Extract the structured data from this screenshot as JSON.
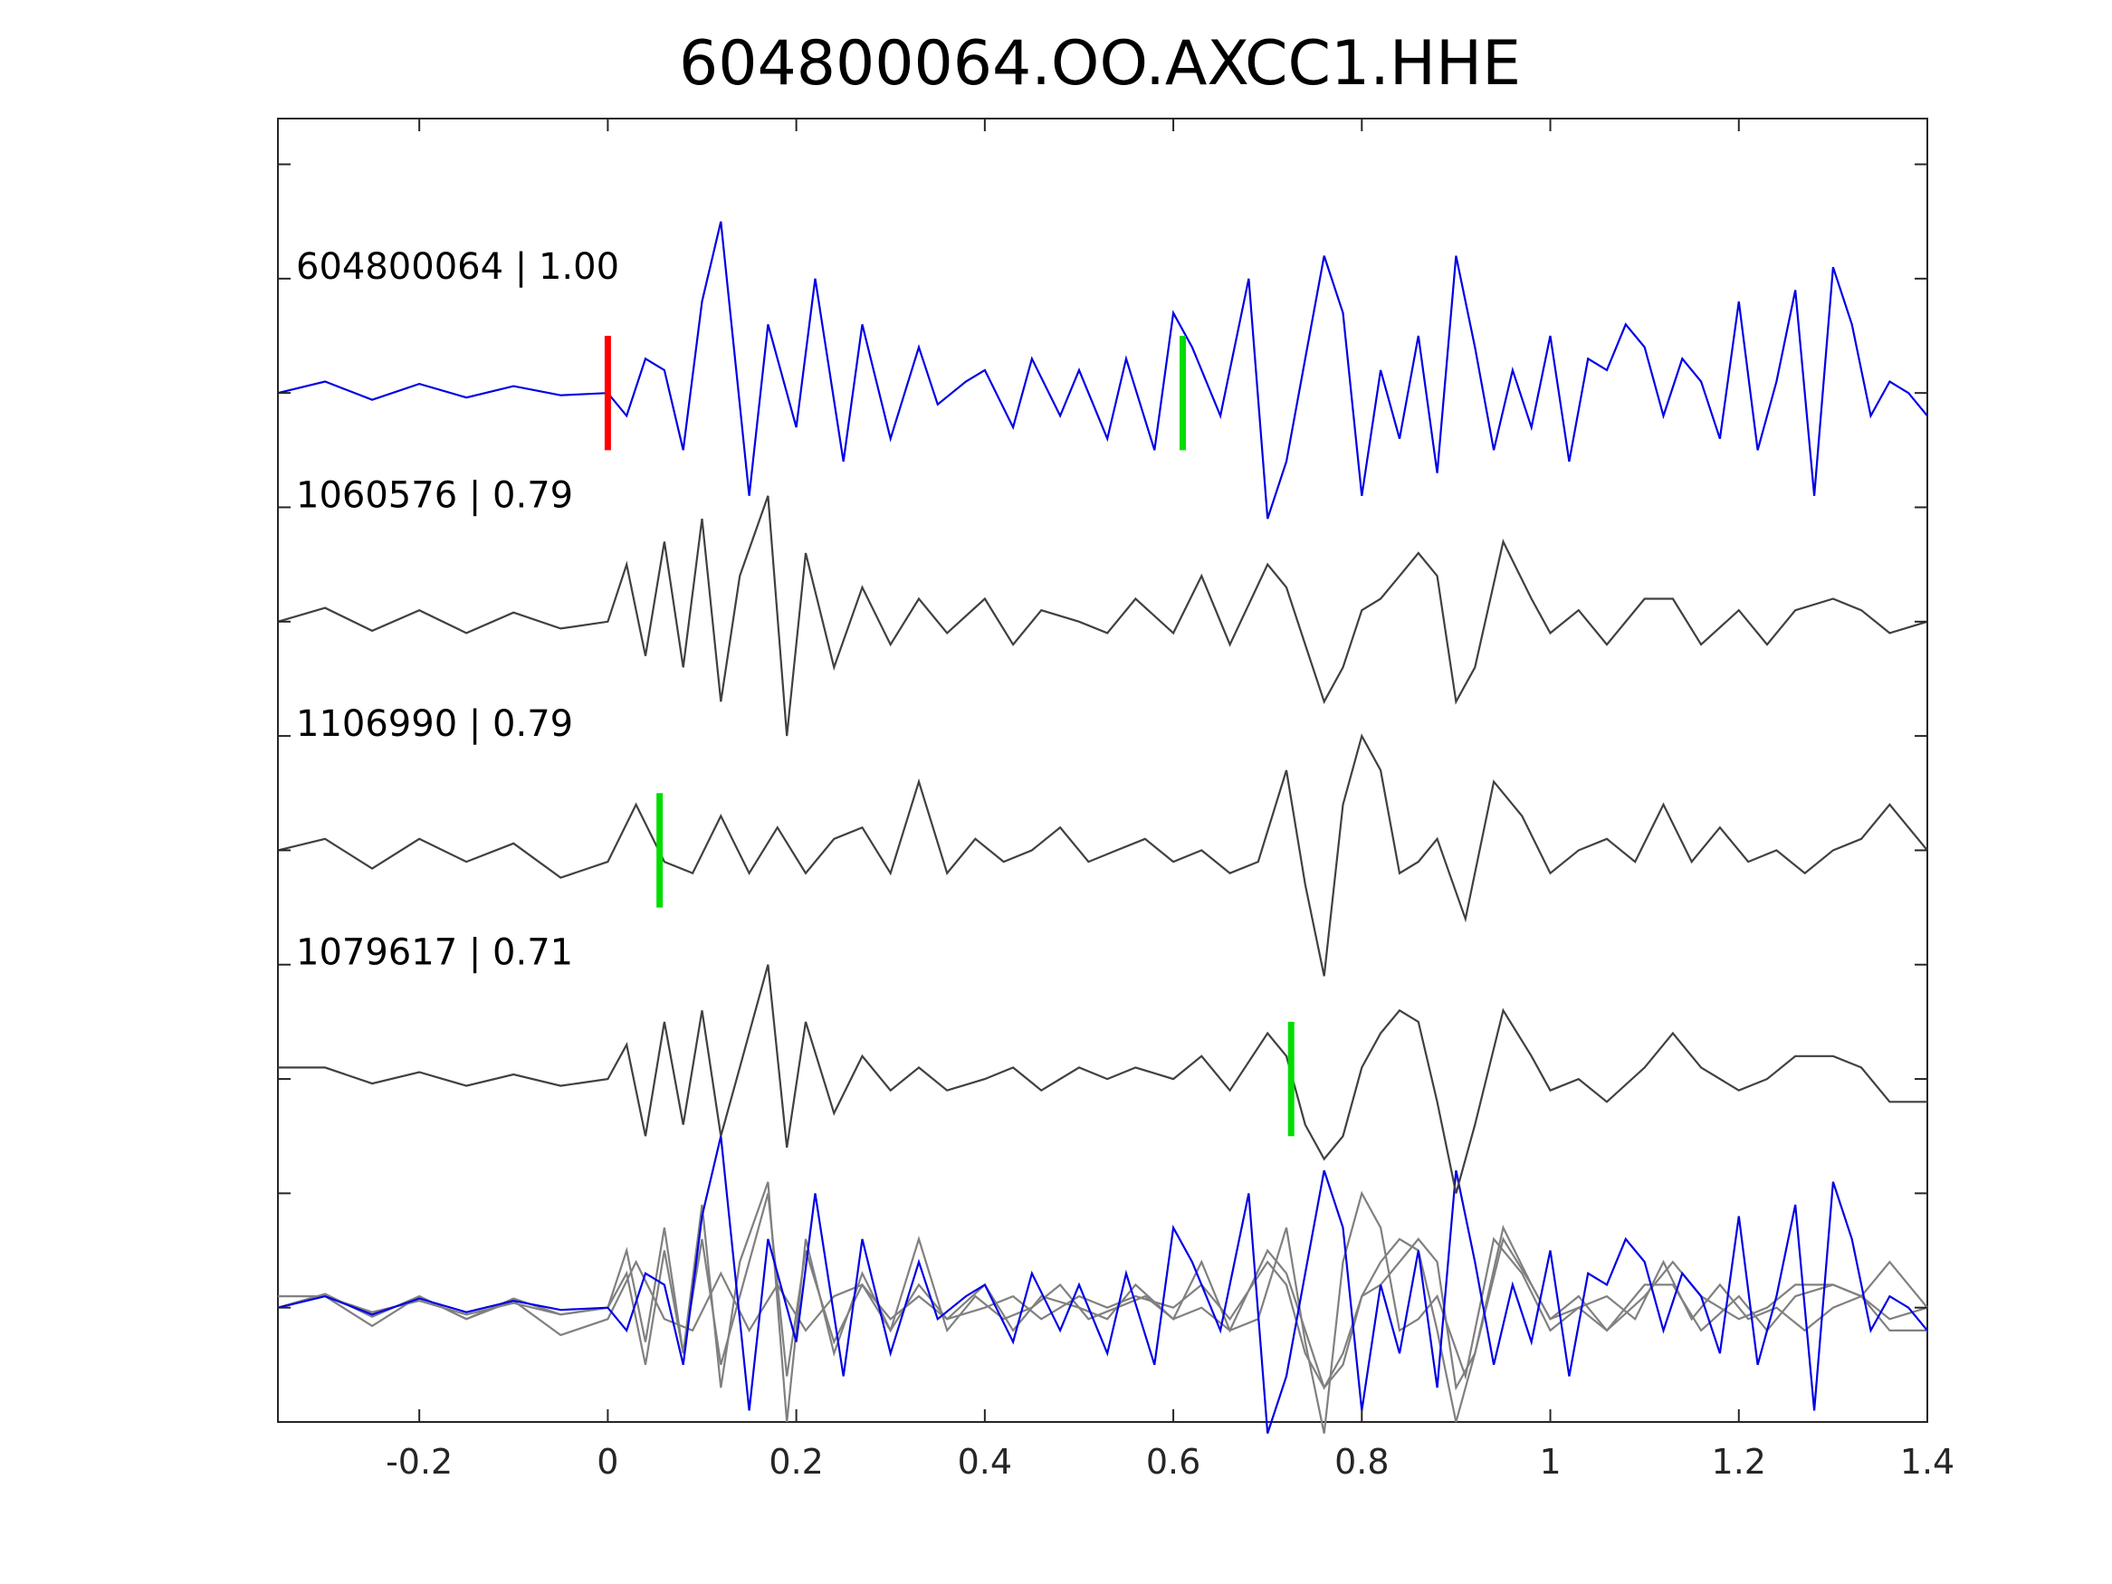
{
  "chart_data": {
    "type": "line",
    "title": "604800064.OO.AXCC1.HHE",
    "xlabel": "",
    "ylabel": "",
    "xlim": [
      -0.35,
      1.4
    ],
    "xticks": [
      "-0.2",
      "0",
      "0.2",
      "0.4",
      "0.6",
      "0.8",
      "1",
      "1.2",
      "1.4"
    ],
    "xtick_values": [
      -0.2,
      0,
      0.2,
      0.4,
      0.6,
      0.8,
      1.0,
      1.2,
      1.4
    ],
    "ylim": [
      -0.5,
      5.2
    ],
    "ytick_values": [
      0,
      0.5,
      1,
      1.5,
      2,
      2.5,
      3,
      3.5,
      4,
      4.5,
      5
    ],
    "grid": false,
    "colors": {
      "reference_trace": "#0000e6",
      "match_trace": "#404040",
      "overlay_trace": "#808080",
      "pick_p": "#ff0000",
      "pick_s": "#00dd00"
    },
    "series": [
      {
        "label": "604800064 | 1.00",
        "role": "reference",
        "offset": 4,
        "picks": [
          {
            "x": 0.0,
            "color": "#ff0000"
          },
          {
            "x": 0.61,
            "color": "#00dd00"
          }
        ],
        "x": [
          -0.35,
          -0.3,
          -0.25,
          -0.2,
          -0.15,
          -0.1,
          -0.05,
          0.0,
          0.02,
          0.04,
          0.06,
          0.08,
          0.1,
          0.12,
          0.15,
          0.17,
          0.2,
          0.22,
          0.25,
          0.27,
          0.3,
          0.33,
          0.35,
          0.38,
          0.4,
          0.43,
          0.45,
          0.48,
          0.5,
          0.53,
          0.55,
          0.58,
          0.6,
          0.62,
          0.65,
          0.68,
          0.7,
          0.72,
          0.74,
          0.76,
          0.78,
          0.8,
          0.82,
          0.84,
          0.86,
          0.88,
          0.9,
          0.92,
          0.94,
          0.96,
          0.98,
          1.0,
          1.02,
          1.04,
          1.06,
          1.08,
          1.1,
          1.12,
          1.14,
          1.16,
          1.18,
          1.2,
          1.22,
          1.24,
          1.26,
          1.28,
          1.3,
          1.32,
          1.34,
          1.36,
          1.38,
          1.4
        ],
        "y": [
          0.0,
          0.05,
          -0.03,
          0.04,
          -0.02,
          0.03,
          -0.01,
          0.0,
          -0.1,
          0.15,
          0.1,
          -0.25,
          0.4,
          0.75,
          -0.45,
          0.3,
          -0.15,
          0.5,
          -0.3,
          0.3,
          -0.2,
          0.2,
          -0.05,
          0.05,
          0.1,
          -0.15,
          0.15,
          -0.1,
          0.1,
          -0.2,
          0.15,
          -0.25,
          0.35,
          0.2,
          -0.1,
          0.5,
          -0.55,
          -0.3,
          0.15,
          0.6,
          0.35,
          -0.45,
          0.1,
          -0.2,
          0.25,
          -0.35,
          0.6,
          0.2,
          -0.25,
          0.1,
          -0.15,
          0.25,
          -0.3,
          0.15,
          0.1,
          0.3,
          0.2,
          -0.1,
          0.15,
          0.05,
          -0.2,
          0.4,
          -0.25,
          0.05,
          0.45,
          -0.45,
          0.55,
          0.3,
          -0.1,
          0.05,
          0.0,
          -0.1
        ]
      },
      {
        "label": "1060576 | 0.79",
        "role": "match",
        "offset": 3,
        "picks": [],
        "x": [
          -0.35,
          -0.3,
          -0.25,
          -0.2,
          -0.15,
          -0.1,
          -0.05,
          0.0,
          0.02,
          0.04,
          0.06,
          0.08,
          0.1,
          0.12,
          0.14,
          0.17,
          0.19,
          0.21,
          0.24,
          0.27,
          0.3,
          0.33,
          0.36,
          0.4,
          0.43,
          0.46,
          0.5,
          0.53,
          0.56,
          0.6,
          0.63,
          0.66,
          0.7,
          0.72,
          0.74,
          0.76,
          0.78,
          0.8,
          0.82,
          0.84,
          0.86,
          0.88,
          0.9,
          0.92,
          0.95,
          0.98,
          1.0,
          1.03,
          1.06,
          1.1,
          1.13,
          1.16,
          1.2,
          1.23,
          1.26,
          1.3,
          1.33,
          1.36,
          1.4
        ],
        "y": [
          0.0,
          0.06,
          -0.04,
          0.05,
          -0.05,
          0.04,
          -0.03,
          0.0,
          0.25,
          -0.15,
          0.35,
          -0.2,
          0.45,
          -0.35,
          0.2,
          0.55,
          -0.5,
          0.3,
          -0.2,
          0.15,
          -0.1,
          0.1,
          -0.05,
          0.1,
          -0.1,
          0.05,
          0.0,
          -0.05,
          0.1,
          -0.05,
          0.2,
          -0.1,
          0.25,
          0.15,
          -0.1,
          -0.35,
          -0.2,
          0.05,
          0.1,
          0.2,
          0.3,
          0.2,
          -0.35,
          -0.2,
          0.35,
          0.1,
          -0.05,
          0.05,
          -0.1,
          0.1,
          0.1,
          -0.1,
          0.05,
          -0.1,
          0.05,
          0.1,
          0.05,
          -0.05,
          0.0
        ]
      },
      {
        "label": "1106990 | 0.79",
        "role": "match",
        "offset": 2,
        "picks": [
          {
            "x": 0.055,
            "color": "#00dd00"
          }
        ],
        "x": [
          -0.35,
          -0.3,
          -0.25,
          -0.2,
          -0.15,
          -0.1,
          -0.05,
          0.0,
          0.03,
          0.06,
          0.09,
          0.12,
          0.15,
          0.18,
          0.21,
          0.24,
          0.27,
          0.3,
          0.33,
          0.36,
          0.39,
          0.42,
          0.45,
          0.48,
          0.51,
          0.54,
          0.57,
          0.6,
          0.63,
          0.66,
          0.69,
          0.72,
          0.74,
          0.76,
          0.78,
          0.8,
          0.82,
          0.84,
          0.86,
          0.88,
          0.91,
          0.94,
          0.97,
          1.0,
          1.03,
          1.06,
          1.09,
          1.12,
          1.15,
          1.18,
          1.21,
          1.24,
          1.27,
          1.3,
          1.33,
          1.36,
          1.4
        ],
        "y": [
          0.0,
          0.05,
          -0.08,
          0.05,
          -0.05,
          0.03,
          -0.12,
          -0.05,
          0.2,
          -0.05,
          -0.1,
          0.15,
          -0.1,
          0.1,
          -0.1,
          0.05,
          0.1,
          -0.1,
          0.3,
          -0.1,
          0.05,
          -0.05,
          0.0,
          0.1,
          -0.05,
          0.0,
          0.05,
          -0.05,
          0.0,
          -0.1,
          -0.05,
          0.35,
          -0.15,
          -0.55,
          0.2,
          0.5,
          0.35,
          -0.1,
          -0.05,
          0.05,
          -0.3,
          0.3,
          0.15,
          -0.1,
          0.0,
          0.05,
          -0.05,
          0.2,
          -0.05,
          0.1,
          -0.05,
          0.0,
          -0.1,
          0.0,
          0.05,
          0.2,
          0.0
        ]
      },
      {
        "label": "1079617 | 0.71",
        "role": "match",
        "offset": 1,
        "picks": [
          {
            "x": 0.725,
            "color": "#00dd00"
          }
        ],
        "x": [
          -0.35,
          -0.3,
          -0.25,
          -0.2,
          -0.15,
          -0.1,
          -0.05,
          0.0,
          0.02,
          0.04,
          0.06,
          0.08,
          0.1,
          0.12,
          0.14,
          0.17,
          0.19,
          0.21,
          0.24,
          0.27,
          0.3,
          0.33,
          0.36,
          0.4,
          0.43,
          0.46,
          0.5,
          0.53,
          0.56,
          0.6,
          0.63,
          0.66,
          0.7,
          0.72,
          0.74,
          0.76,
          0.78,
          0.8,
          0.82,
          0.84,
          0.86,
          0.88,
          0.9,
          0.92,
          0.95,
          0.98,
          1.0,
          1.03,
          1.06,
          1.1,
          1.13,
          1.16,
          1.2,
          1.23,
          1.26,
          1.3,
          1.33,
          1.36,
          1.4
        ],
        "y": [
          0.05,
          0.05,
          -0.02,
          0.03,
          -0.03,
          0.02,
          -0.03,
          0.0,
          0.15,
          -0.25,
          0.25,
          -0.2,
          0.3,
          -0.25,
          0.05,
          0.5,
          -0.3,
          0.25,
          -0.15,
          0.1,
          -0.05,
          0.05,
          -0.05,
          0.0,
          0.05,
          -0.05,
          0.05,
          0.0,
          0.05,
          0.0,
          0.1,
          -0.05,
          0.2,
          0.1,
          -0.2,
          -0.35,
          -0.25,
          0.05,
          0.2,
          0.3,
          0.25,
          -0.1,
          -0.5,
          -0.2,
          0.3,
          0.1,
          -0.05,
          0.0,
          -0.1,
          0.05,
          0.2,
          0.05,
          -0.05,
          0.0,
          0.1,
          0.1,
          0.05,
          -0.1,
          -0.1
        ]
      },
      {
        "label": "",
        "role": "overlay",
        "offset": 0,
        "picks": []
      }
    ]
  }
}
